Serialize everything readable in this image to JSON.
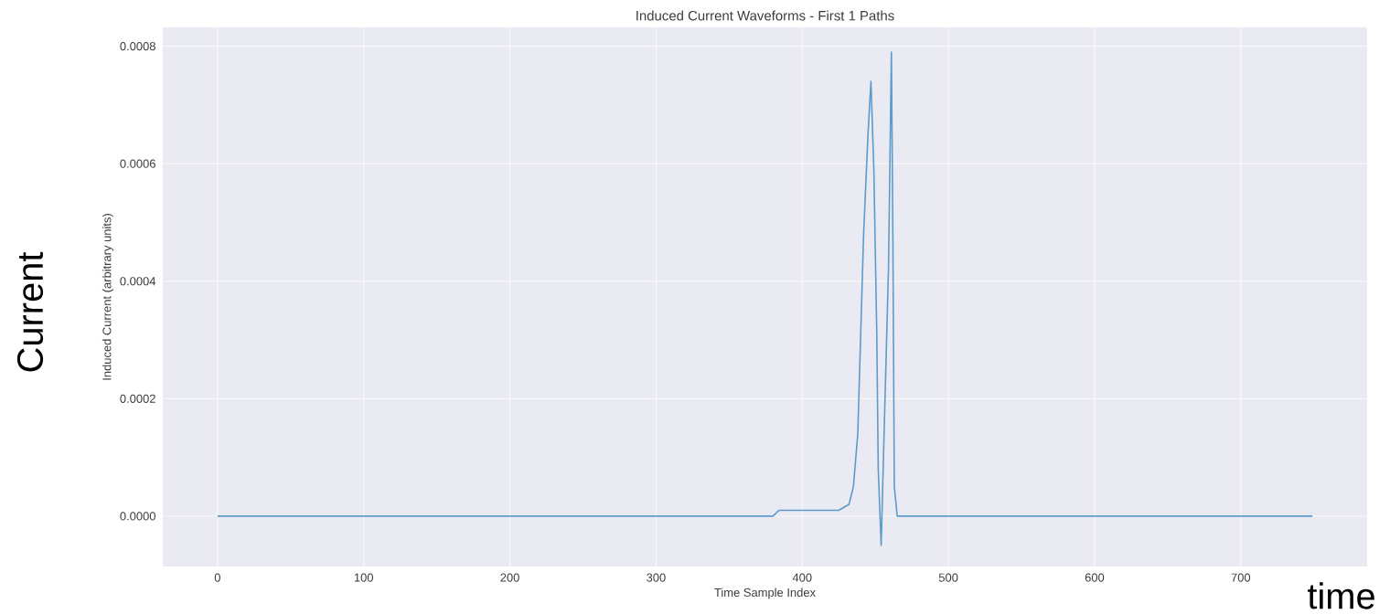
{
  "chart_data": {
    "type": "line",
    "title": "Induced Current Waveforms - First 1 Paths",
    "xlabel": "Time Sample Index",
    "ylabel": "Induced Current (arbitrary units)",
    "annotations": [
      "Current",
      "time"
    ],
    "x": [
      0,
      380,
      384,
      386,
      400,
      420,
      425,
      432,
      435,
      438,
      440,
      442,
      445,
      447,
      449,
      451,
      452,
      454,
      456,
      459,
      461,
      462,
      463,
      465,
      749
    ],
    "series": [
      {
        "color": "#5c9bcb",
        "values": [
          0,
          0,
          1e-05,
          1e-05,
          1e-05,
          1e-05,
          1e-05,
          2e-05,
          5e-05,
          0.00014,
          0.00031,
          0.00048,
          0.00065,
          0.00074,
          0.00059,
          0.00031,
          8e-05,
          -5e-05,
          0.00014,
          0.00042,
          0.00079,
          0.00048,
          5e-05,
          0,
          0
        ]
      }
    ],
    "xlim": [
      -37.45,
      786.45
    ],
    "ylim": [
      -8.57e-05,
      0.000832
    ],
    "xticks": [
      0,
      100,
      200,
      300,
      400,
      500,
      600,
      700
    ],
    "yticks": [
      {
        "value": 0,
        "label": "0.0000"
      },
      {
        "value": 0.0002,
        "label": "0.0002"
      },
      {
        "value": 0.0004,
        "label": "0.0004"
      },
      {
        "value": 0.0006,
        "label": "0.0006"
      },
      {
        "value": 0.0008,
        "label": "0.0008"
      }
    ],
    "grid": true,
    "marker": "none",
    "line_style": "solid"
  }
}
